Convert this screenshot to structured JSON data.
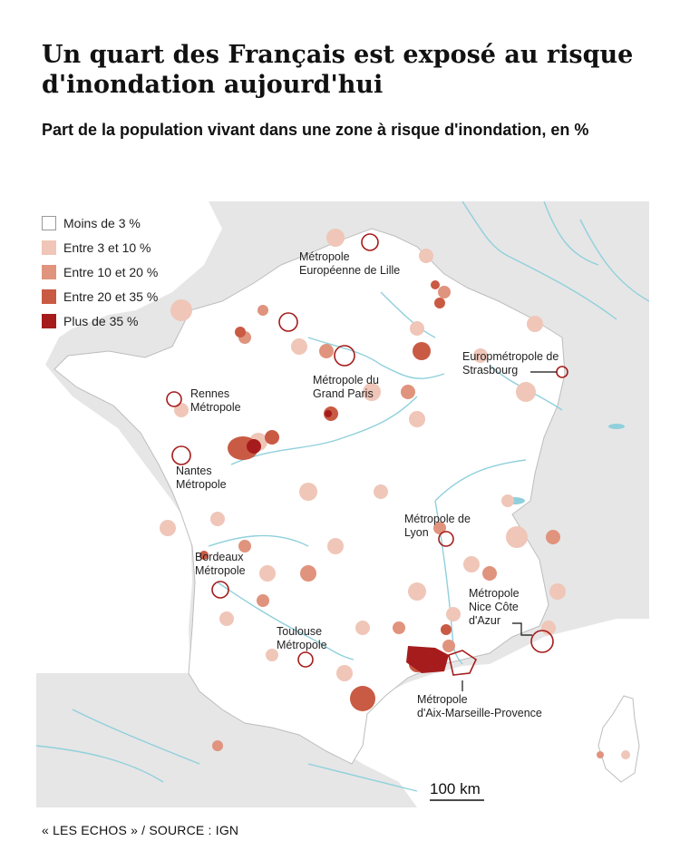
{
  "title": "Un quart des Français est exposé au risque d'inondation aujourd'hui",
  "subtitle": "Part de la population vivant dans une zone à risque d'inondation, en %",
  "legend": [
    {
      "label": "Moins de 3 %",
      "color": "#ffffff"
    },
    {
      "label": "Entre 3 et 10 %",
      "color": "#efc6b8"
    },
    {
      "label": "Entre 10 et 20 %",
      "color": "#e0937d"
    },
    {
      "label": "Entre 20 et 35 %",
      "color": "#c95a44"
    },
    {
      "label": "Plus de 35 %",
      "color": "#a61c1c"
    }
  ],
  "labels": {
    "lille": "Métropole\nEuropéenne de Lille",
    "strasbourg": "Europmétropole de\nStrasbourg",
    "paris": "Métropole du\nGrand Paris",
    "rennes": "Rennes\nMétropole",
    "nantes": "Nantes\nMétropole",
    "lyon": "Métropole de\nLyon",
    "bordeaux": "Bordeaux\nMétropole",
    "nice": "Métropole\nNice Côte\nd'Azur",
    "toulouse": "Toulouse\nMétropole",
    "marseille": "Métropole\nd'Aix-Marseille-Provence"
  },
  "scale": "100 km",
  "source": "« LES ECHOS » / SOURCE : IGN",
  "colors": {
    "sea": "#ffffff",
    "land_outside": "#e6e6e6",
    "france": "#ffffff",
    "rivers": "#8fd0dc",
    "border": "#bdbdbd"
  }
}
